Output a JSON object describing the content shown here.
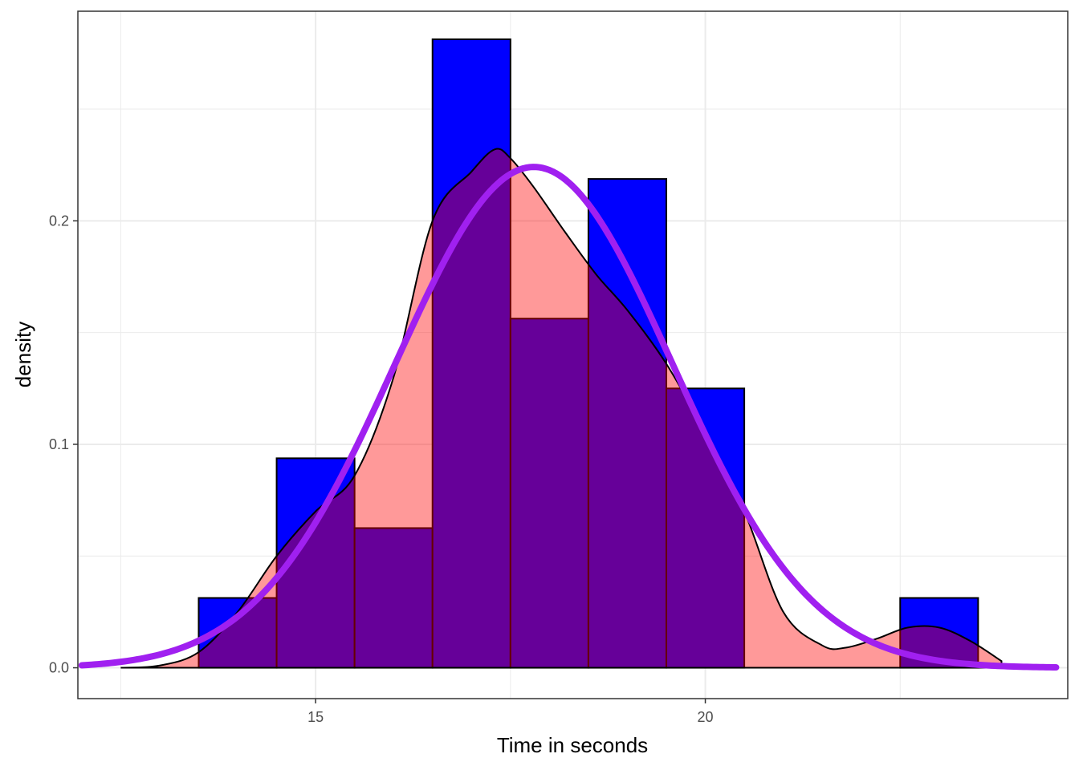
{
  "chart_data": {
    "type": "bar",
    "title": "",
    "xlabel": "Time in seconds",
    "ylabel": "density",
    "xlim": [
      11.95,
      24.65
    ],
    "ylim": [
      -0.0138,
      0.2938
    ],
    "x_ticks": [
      15,
      20
    ],
    "y_ticks": [
      0.0,
      0.1,
      0.2
    ],
    "x_tick_labels": [
      "15",
      "20"
    ],
    "y_tick_labels": [
      "0.0",
      "0.1",
      "0.2"
    ],
    "minor_gridlines": {
      "x": [
        12.5,
        17.5,
        22.5
      ],
      "y": [
        0.05,
        0.15,
        0.25
      ]
    },
    "grid": true,
    "histogram": {
      "bins": [
        {
          "x0": 13.5,
          "x1": 14.5,
          "density": 0.03125
        },
        {
          "x0": 14.5,
          "x1": 15.5,
          "density": 0.09375
        },
        {
          "x0": 15.5,
          "x1": 16.5,
          "density": 0.0625
        },
        {
          "x0": 16.5,
          "x1": 17.5,
          "density": 0.28125
        },
        {
          "x0": 17.5,
          "x1": 18.5,
          "density": 0.15625
        },
        {
          "x0": 18.5,
          "x1": 19.5,
          "density": 0.21875
        },
        {
          "x0": 19.5,
          "x1": 20.5,
          "density": 0.125
        },
        {
          "x0": 20.5,
          "x1": 21.5,
          "density": 0.0
        },
        {
          "x0": 21.5,
          "x1": 22.5,
          "density": 0.0
        },
        {
          "x0": 22.5,
          "x1": 23.5,
          "density": 0.03125
        }
      ],
      "fill": "#0000ff",
      "stroke": "#000000"
    },
    "kernel_density": {
      "x": [
        12.5,
        13.0,
        13.5,
        14.0,
        14.5,
        15.0,
        15.5,
        16.0,
        16.5,
        17.0,
        17.3,
        17.5,
        17.8,
        18.2,
        18.6,
        19.0,
        19.5,
        20.0,
        20.5,
        21.0,
        21.5,
        21.8,
        22.2,
        22.6,
        23.0,
        23.4,
        23.8
      ],
      "y": [
        0.0,
        0.001,
        0.007,
        0.025,
        0.05,
        0.07,
        0.086,
        0.13,
        0.2,
        0.222,
        0.232,
        0.228,
        0.215,
        0.195,
        0.176,
        0.16,
        0.136,
        0.105,
        0.07,
        0.025,
        0.01,
        0.009,
        0.013,
        0.018,
        0.018,
        0.012,
        0.003
      ],
      "fill": "#ff0000",
      "fill_opacity": 0.4,
      "stroke": "#000000"
    },
    "normal_curve": {
      "mean": 17.8,
      "sd": 1.78,
      "x_range": [
        12.0,
        24.5
      ],
      "stroke": "#a020f0"
    }
  }
}
